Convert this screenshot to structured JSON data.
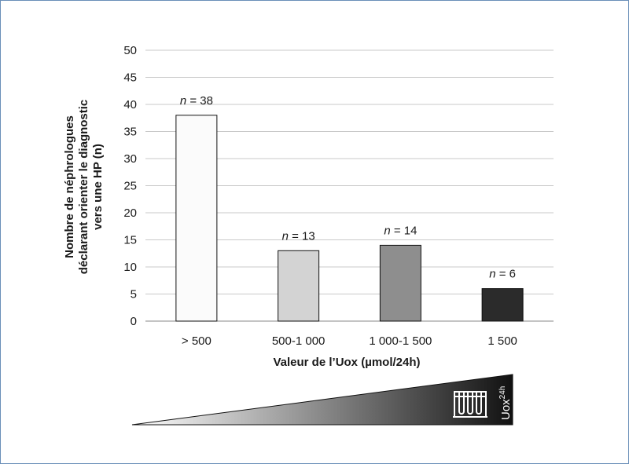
{
  "chart_data": {
    "type": "bar",
    "categories": [
      "> 500",
      "500-1 000",
      "1 000-1 500",
      "1 500"
    ],
    "values": [
      38,
      13,
      14,
      6
    ],
    "data_labels": [
      {
        "prefix": "n",
        "text": " = 38"
      },
      {
        "prefix": "n",
        "text": " = 13"
      },
      {
        "prefix": "n",
        "text": " = 14"
      },
      {
        "prefix": "n",
        "text": " = 6"
      }
    ],
    "bar_colors": [
      "#fbfbfb",
      "#d3d3d3",
      "#8e8e8e",
      "#2b2b2b"
    ],
    "xlabel": "Valeur de l’Uox (µmol/24h)",
    "ylabel_lines": [
      "Nombre de néphrologues",
      "déclarant orienter le diagnostic",
      "vers une HP (n)"
    ],
    "ylim": [
      0,
      50
    ],
    "yticks": [
      0,
      5,
      10,
      15,
      20,
      25,
      30,
      35,
      40,
      45,
      50
    ],
    "grid": true
  },
  "gradient_legend": {
    "label_base": "Uox",
    "label_sup": "24h",
    "icon": "test-tubes-rack-icon",
    "start_color": "#ffffff",
    "end_color": "#111111"
  }
}
